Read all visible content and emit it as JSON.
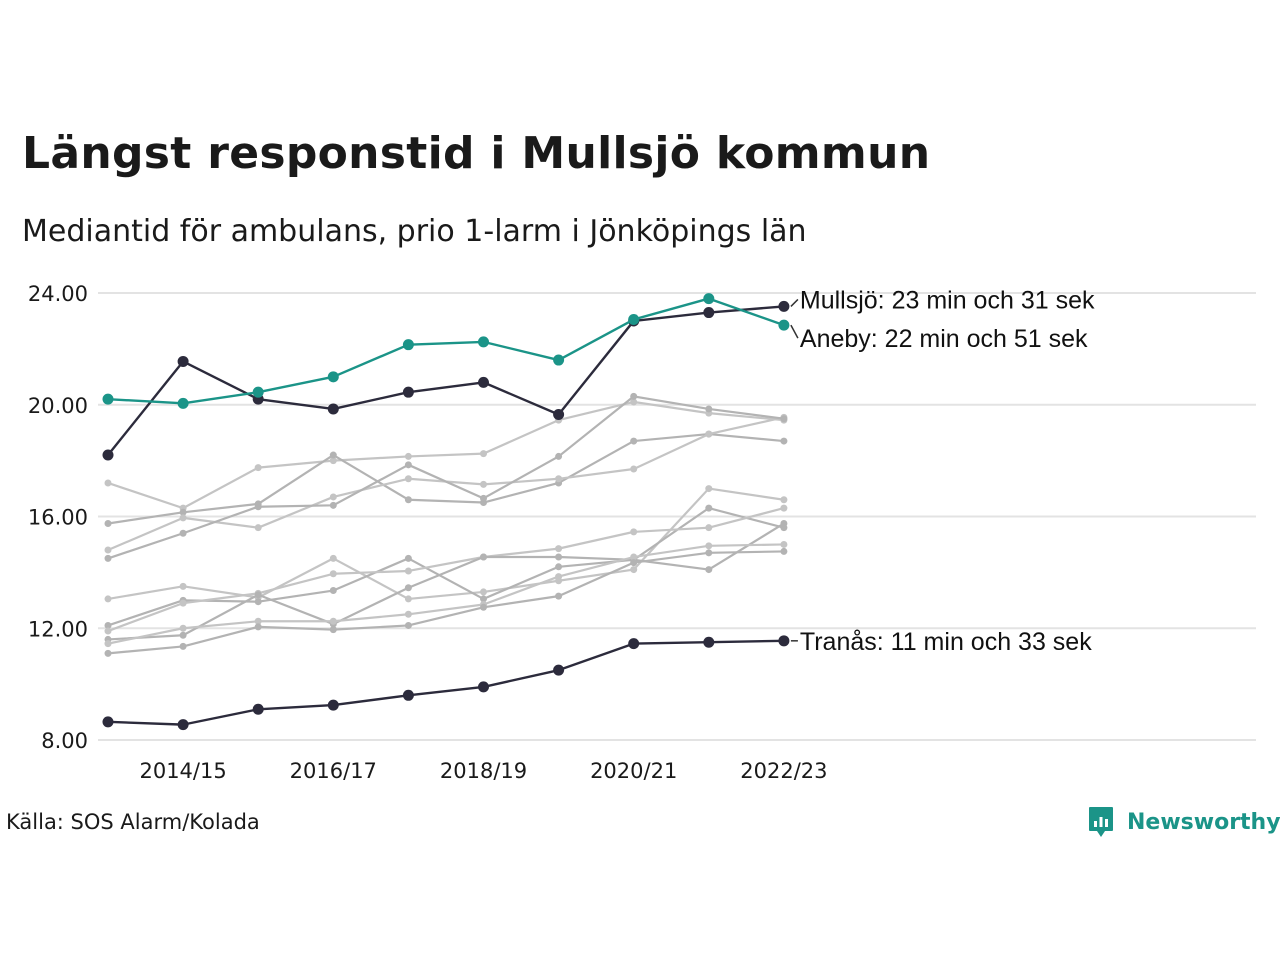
{
  "title": "Längst responstid i Mullsjö kommun",
  "subtitle": "Mediantid för ambulans, prio 1-larm i Jönköpings län",
  "source": "Källa: SOS Alarm/Kolada",
  "brand": {
    "name": "Newsworthy",
    "icon": "newsworthy-logo-icon",
    "color": "#1b9488"
  },
  "chart_data": {
    "type": "line",
    "x": [
      "2013/14",
      "2014/15",
      "2015/16",
      "2016/17",
      "2017/18",
      "2018/19",
      "2019/20",
      "2020/21",
      "2021/22",
      "2022/23"
    ],
    "x_tick_labels": [
      "2014/15",
      "2016/17",
      "2018/19",
      "2020/21",
      "2022/23"
    ],
    "y_ticks": [
      "8.00",
      "12.00",
      "16.00",
      "20.00",
      "24.00"
    ],
    "ylim": [
      8,
      24
    ],
    "grid": "horizontal",
    "legend": "none",
    "colors": {
      "highlight_dark": "#2c2b3c",
      "highlight_teal": "#1b9488",
      "context": "#b9b9b9"
    },
    "highlighted_series": [
      {
        "name": "Mullsjö",
        "color": "#2c2b3c",
        "label": "Mullsjö: 23 min och 31 sek",
        "values": [
          18.2,
          21.55,
          20.2,
          19.85,
          20.45,
          20.8,
          19.65,
          23.0,
          23.3,
          23.52
        ]
      },
      {
        "name": "Aneby",
        "color": "#1b9488",
        "label": "Aneby: 22 min och 51 sek",
        "values": [
          20.2,
          20.05,
          20.45,
          21.0,
          22.15,
          22.25,
          21.6,
          23.05,
          23.8,
          22.85
        ]
      },
      {
        "name": "Tranås",
        "color": "#2c2b3c",
        "label": "Tranås: 11 min och 33 sek",
        "values": [
          8.65,
          8.55,
          9.1,
          9.25,
          9.6,
          9.9,
          10.5,
          11.45,
          11.5,
          11.55
        ]
      }
    ],
    "context_series": [
      {
        "values": [
          17.2,
          16.3,
          17.75,
          18.0,
          18.15,
          18.25,
          19.45,
          20.1,
          19.7,
          19.45
        ]
      },
      {
        "values": [
          15.75,
          16.15,
          16.45,
          18.2,
          16.6,
          16.5,
          17.2,
          18.7,
          18.95,
          18.7
        ]
      },
      {
        "values": [
          14.8,
          15.95,
          15.6,
          16.7,
          17.35,
          17.15,
          17.35,
          17.7,
          18.95,
          19.55
        ]
      },
      {
        "values": [
          14.5,
          15.4,
          16.35,
          16.4,
          17.85,
          16.65,
          18.15,
          20.3,
          19.85,
          19.5
        ]
      },
      {
        "values": [
          13.05,
          13.5,
          13.1,
          14.5,
          13.05,
          13.3,
          13.7,
          14.1,
          17.0,
          16.6
        ]
      },
      {
        "values": [
          12.1,
          13.0,
          12.95,
          13.35,
          14.5,
          13.05,
          14.2,
          14.45,
          16.3,
          15.6
        ]
      },
      {
        "values": [
          11.9,
          12.9,
          13.25,
          13.95,
          14.05,
          14.55,
          14.85,
          15.45,
          15.6,
          16.3
        ]
      },
      {
        "values": [
          11.6,
          11.75,
          13.2,
          12.15,
          13.45,
          14.55,
          14.55,
          14.45,
          14.1,
          15.75
        ]
      },
      {
        "values": [
          11.45,
          12.0,
          12.25,
          12.25,
          12.5,
          12.85,
          13.85,
          14.55,
          14.95,
          15.0
        ]
      },
      {
        "values": [
          11.1,
          11.35,
          12.05,
          11.95,
          12.1,
          12.75,
          13.15,
          14.35,
          14.7,
          14.75
        ]
      }
    ]
  }
}
